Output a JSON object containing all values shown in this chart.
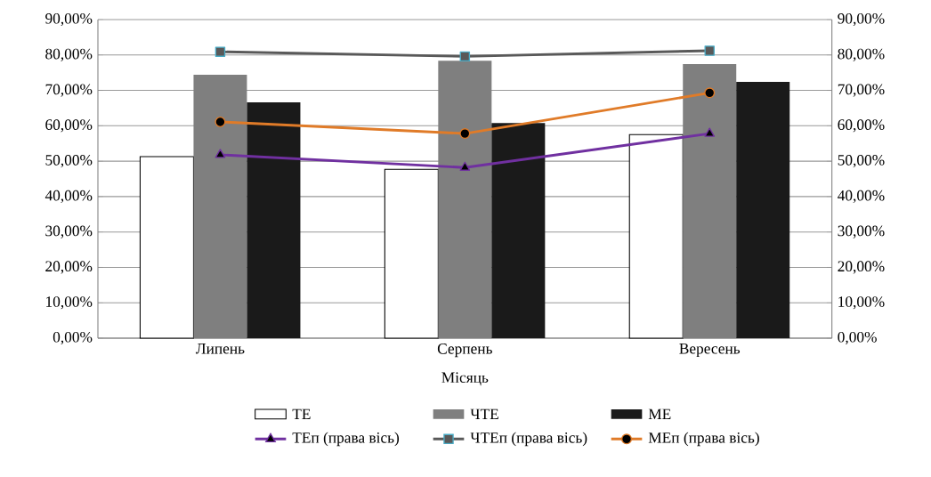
{
  "chart_data": {
    "type": "bar",
    "xlabel": "Місяць",
    "categories": [
      "Липень",
      "Серпень",
      "Вересень"
    ],
    "series": [
      {
        "name": "ТЕ",
        "color": "#000000",
        "values": [
          51.3,
          47.7,
          57.5
        ]
      },
      {
        "name": "ЧТЕ",
        "color": "#7f7f7f",
        "values": [
          74.4,
          78.4,
          77.4
        ]
      },
      {
        "name": "МЕ",
        "color": "#1a1a1a",
        "values": [
          66.6,
          60.8,
          72.4
        ]
      },
      {
        "name": "ТЕп (права вісь)",
        "type": "line",
        "axis": "y2",
        "marker": "triangle",
        "color": "#7030a0",
        "values": [
          51.8,
          48.2,
          57.8
        ]
      },
      {
        "name": "ЧТЕп (права вісь)",
        "type": "line",
        "axis": "y2",
        "marker": "square",
        "color": "#595959",
        "values": [
          80.9,
          79.6,
          81.2
        ]
      },
      {
        "name": "МЕп (права вісь)",
        "type": "line",
        "axis": "y2",
        "marker": "circle",
        "color": "#e07b28",
        "values": [
          61.1,
          57.8,
          69.3
        ]
      }
    ],
    "ylim": [
      0,
      90
    ],
    "yticks": [
      {
        "value": 0,
        "label": "0,00%"
      },
      {
        "value": 10,
        "label": "10,00%"
      },
      {
        "value": 20,
        "label": "20,00%"
      },
      {
        "value": 30,
        "label": "30,00%"
      },
      {
        "value": 40,
        "label": "40,00%"
      },
      {
        "value": 50,
        "label": "50,00%"
      },
      {
        "value": 60,
        "label": "60,00%"
      },
      {
        "value": 70,
        "label": "70,00%"
      },
      {
        "value": 80,
        "label": "80,00%"
      },
      {
        "value": 90,
        "label": "90,00%"
      }
    ],
    "y2lim": [
      0,
      90
    ],
    "y2ticks": [
      {
        "value": 0,
        "label": "0,00%"
      },
      {
        "value": 10,
        "label": "10,00%"
      },
      {
        "value": 20,
        "label": "20,00%"
      },
      {
        "value": 30,
        "label": "30,00%"
      },
      {
        "value": 40,
        "label": "40,00%"
      },
      {
        "value": 50,
        "label": "50,00%"
      },
      {
        "value": 60,
        "label": "60,00%"
      },
      {
        "value": 70,
        "label": "70,00%"
      },
      {
        "value": 80,
        "label": "80,00%"
      },
      {
        "value": 90,
        "label": "90,00%"
      }
    ],
    "grid": "y",
    "legend": "bottom"
  }
}
